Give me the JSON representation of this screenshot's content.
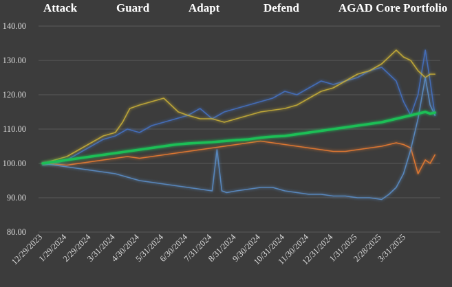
{
  "chart_data": {
    "type": "line",
    "title": "",
    "xlabel": "",
    "ylabel": "",
    "ylim": [
      80,
      140
    ],
    "grid": true,
    "legend_position": "top",
    "y_ticks": [
      "80.00",
      "90.00",
      "100.00",
      "110.00",
      "120.00",
      "130.00",
      "140.00"
    ],
    "x_ticks": [
      "12/29/2023",
      "1/29/2024",
      "2/29/2024",
      "3/31/2024",
      "4/30/2024",
      "5/31/2024",
      "6/30/2024",
      "7/31/2024",
      "8/31/2024",
      "9/30/2024",
      "10/31/2024",
      "11/30/2024",
      "12/31/2024",
      "1/31/2025",
      "2/28/2025",
      "3/31/2025"
    ],
    "series": [
      {
        "name": "Attack",
        "color": "#4472c4",
        "x": [
          0,
          0.5,
          1,
          1.5,
          2,
          2.5,
          3,
          3.5,
          4,
          4.5,
          5,
          5.5,
          6,
          6.5,
          7,
          7.5,
          8,
          8.5,
          9,
          9.5,
          10,
          10.5,
          11,
          11.5,
          12,
          12.5,
          13,
          13.5,
          14,
          14.3,
          14.6,
          14.9,
          15.2,
          15.5,
          15.8,
          16,
          16.2
        ],
        "values": [
          99.5,
          100,
          101,
          103,
          105,
          107,
          108,
          110,
          109,
          111,
          112,
          113,
          114,
          116,
          113,
          115,
          116,
          117,
          118,
          119,
          121,
          120,
          122,
          124,
          123,
          124,
          125,
          127,
          128,
          126,
          124,
          118,
          114,
          120,
          133,
          124,
          114
        ]
      },
      {
        "name": "Guard",
        "color": "#ed7d31",
        "x": [
          0,
          0.5,
          1,
          1.5,
          2,
          2.5,
          3,
          3.5,
          4,
          4.5,
          5,
          5.5,
          6,
          6.5,
          7,
          7.5,
          8,
          8.5,
          9,
          9.5,
          10,
          10.5,
          11,
          11.5,
          12,
          12.5,
          13,
          13.5,
          14,
          14.3,
          14.6,
          14.9,
          15.2,
          15.5,
          15.8,
          16,
          16.2
        ],
        "values": [
          100,
          99.8,
          99.5,
          100,
          100.5,
          101,
          101.5,
          102,
          101.5,
          102,
          102.5,
          103,
          103.5,
          104,
          104.5,
          105,
          105.5,
          106,
          106.5,
          106,
          105.5,
          105,
          104.5,
          104,
          103.5,
          103.5,
          104,
          104.5,
          105,
          105.5,
          106,
          105.5,
          104.5,
          97,
          101,
          100,
          102.5
        ]
      },
      {
        "name": "Adapt",
        "color": "#c9b037",
        "x": [
          0,
          0.5,
          1,
          1.5,
          2,
          2.5,
          3,
          3.3,
          3.6,
          4,
          4.5,
          5,
          5.3,
          5.6,
          6,
          6.5,
          7,
          7.5,
          8,
          8.5,
          9,
          9.5,
          10,
          10.5,
          11,
          11.5,
          12,
          12.5,
          13,
          13.5,
          14,
          14.3,
          14.6,
          14.9,
          15.2,
          15.5,
          15.8,
          16,
          16.2
        ],
        "values": [
          100,
          101,
          102,
          104,
          106,
          108,
          109,
          112,
          116,
          117,
          118,
          119,
          117,
          115,
          114,
          113,
          113,
          112,
          113,
          114,
          115,
          115.5,
          116,
          117,
          119,
          121,
          122,
          124,
          126,
          127,
          129,
          131,
          133,
          131,
          130,
          127,
          125,
          126,
          126
        ]
      },
      {
        "name": "Defend",
        "color": "#5b8fc9",
        "x": [
          0,
          0.5,
          1,
          1.5,
          2,
          2.5,
          3,
          3.5,
          4,
          4.5,
          5,
          5.5,
          6,
          6.5,
          7,
          7.2,
          7.4,
          7.6,
          8,
          8.5,
          9,
          9.5,
          10,
          10.5,
          11,
          11.5,
          12,
          12.5,
          13,
          13.5,
          14,
          14.3,
          14.6,
          14.9,
          15.2,
          15.5,
          15.8,
          16,
          16.2
        ],
        "values": [
          100,
          99.5,
          99,
          98.5,
          98,
          97.5,
          97,
          96,
          95,
          94.5,
          94,
          93.5,
          93,
          92.5,
          92,
          104,
          92,
          91.5,
          92,
          92.5,
          93,
          93,
          92,
          91.5,
          91,
          91,
          90.5,
          90.5,
          90,
          90,
          89.5,
          91,
          93,
          97,
          104,
          113,
          125,
          117,
          114
        ]
      },
      {
        "name": "AGAD Core Portfolio",
        "color": "#1fbf57",
        "x": [
          0,
          0.5,
          1,
          1.5,
          2,
          2.5,
          3,
          3.5,
          4,
          4.5,
          5,
          5.5,
          6,
          6.5,
          7,
          7.5,
          8,
          8.5,
          9,
          9.5,
          10,
          10.5,
          11,
          11.5,
          12,
          12.5,
          13,
          13.5,
          14,
          14.3,
          14.6,
          14.9,
          15.2,
          15.5,
          15.8,
          16,
          16.2
        ],
        "values": [
          100,
          100.5,
          101,
          101.5,
          102,
          102.5,
          103,
          103.5,
          104,
          104.5,
          105,
          105.5,
          105.8,
          106,
          106.2,
          106.5,
          106.8,
          107,
          107.5,
          107.8,
          108,
          108.5,
          109,
          109.5,
          110,
          110.5,
          111,
          111.5,
          112,
          112.5,
          113,
          113.5,
          114,
          114.5,
          115,
          114.5,
          114.8
        ]
      }
    ]
  }
}
